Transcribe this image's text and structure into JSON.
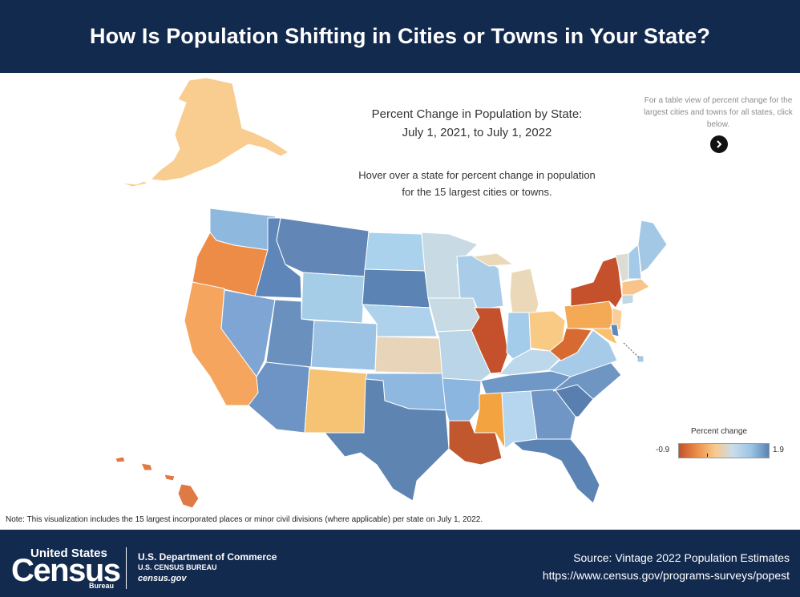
{
  "header": {
    "title": "How Is Population Shifting in Cities or Towns in Your State?"
  },
  "map": {
    "title_line1": "Percent Change in Population by State:",
    "title_line2": "July 1, 2021, to July 1, 2022",
    "hover_line1": "Hover over a state for percent change in population",
    "hover_line2": "for the 15 largest cities or towns.",
    "table_note": "For a table view of percent change for the largest cities and towns for all states, click below.",
    "arrow_icon": "arrow-right-icon"
  },
  "legend": {
    "title": "Percent change",
    "min": "-0.9",
    "max": "1.9",
    "colors": [
      "#c4512c",
      "#eb8f48",
      "#f9c98c",
      "#c9dcea",
      "#9dc5e4",
      "#5b83b3"
    ]
  },
  "note": "Note: This visualization includes the 15 largest incorporated places or minor civil divisions (where applicable) per state on July 1, 2022.",
  "footer": {
    "logo_top": "United States",
    "logo_big": "Census",
    "logo_bureau": "Bureau",
    "dept": "U.S. Department of Commerce",
    "bureau": "U.S. CENSUS BUREAU",
    "site": "census.gov",
    "source": "Source: Vintage 2022 Population Estimates",
    "source_url": "https://www.census.gov/programs-surveys/popest"
  },
  "states": [
    {
      "id": "AK",
      "color": "#f9cc90"
    },
    {
      "id": "HI",
      "color": "#e07a45"
    },
    {
      "id": "WA",
      "color": "#8fb8de"
    },
    {
      "id": "OR",
      "color": "#ec8c46"
    },
    {
      "id": "CA",
      "color": "#f5a55d"
    },
    {
      "id": "ID",
      "color": "#5f86b8"
    },
    {
      "id": "NV",
      "color": "#7ea5d3"
    },
    {
      "id": "MT",
      "color": "#6286b6"
    },
    {
      "id": "WY",
      "color": "#a6cde8"
    },
    {
      "id": "UT",
      "color": "#6a90bd"
    },
    {
      "id": "AZ",
      "color": "#6d94c4"
    },
    {
      "id": "CO",
      "color": "#9cc3e4"
    },
    {
      "id": "NM",
      "color": "#f6c273"
    },
    {
      "id": "ND",
      "color": "#abd2ec"
    },
    {
      "id": "SD",
      "color": "#5b83b3"
    },
    {
      "id": "NE",
      "color": "#aed2eb"
    },
    {
      "id": "KS",
      "color": "#e8d5b9"
    },
    {
      "id": "OK",
      "color": "#8fb8e0"
    },
    {
      "id": "TX",
      "color": "#5e84b2"
    },
    {
      "id": "MN",
      "color": "#c8dbe5"
    },
    {
      "id": "IA",
      "color": "#c8dbe5"
    },
    {
      "id": "MO",
      "color": "#b9d5e7"
    },
    {
      "id": "AR",
      "color": "#8bb6df"
    },
    {
      "id": "LA",
      "color": "#c0572e"
    },
    {
      "id": "WI",
      "color": "#a9cde8"
    },
    {
      "id": "IL",
      "color": "#c4512c"
    },
    {
      "id": "MI",
      "color": "#ebd8b8"
    },
    {
      "id": "IN",
      "color": "#a3cbea"
    },
    {
      "id": "OH",
      "color": "#f9ca83"
    },
    {
      "id": "KY",
      "color": "#bcd8ea"
    },
    {
      "id": "TN",
      "color": "#6f98c6"
    },
    {
      "id": "MS",
      "color": "#f3a441"
    },
    {
      "id": "AL",
      "color": "#b5d6ee"
    },
    {
      "id": "GA",
      "color": "#6f96c5"
    },
    {
      "id": "FL",
      "color": "#5b83b3"
    },
    {
      "id": "SC",
      "color": "#587fb0"
    },
    {
      "id": "NC",
      "color": "#6f95c3"
    },
    {
      "id": "VA",
      "color": "#a6cbe8"
    },
    {
      "id": "WV",
      "color": "#d76a31"
    },
    {
      "id": "PA",
      "color": "#f4a954"
    },
    {
      "id": "NY",
      "color": "#c4512c"
    },
    {
      "id": "VT",
      "color": "#dcdcd4"
    },
    {
      "id": "NH",
      "color": "#a4cae7"
    },
    {
      "id": "ME",
      "color": "#a3c8e6"
    },
    {
      "id": "MA",
      "color": "#f9c48a"
    },
    {
      "id": "CT",
      "color": "#c3d7e4"
    },
    {
      "id": "NJ",
      "color": "#f9ce98"
    },
    {
      "id": "MD",
      "color": "#f9c06d"
    },
    {
      "id": "DE",
      "color": "#5f88b6"
    },
    {
      "id": "DC",
      "color": "#a3cae8"
    }
  ]
}
